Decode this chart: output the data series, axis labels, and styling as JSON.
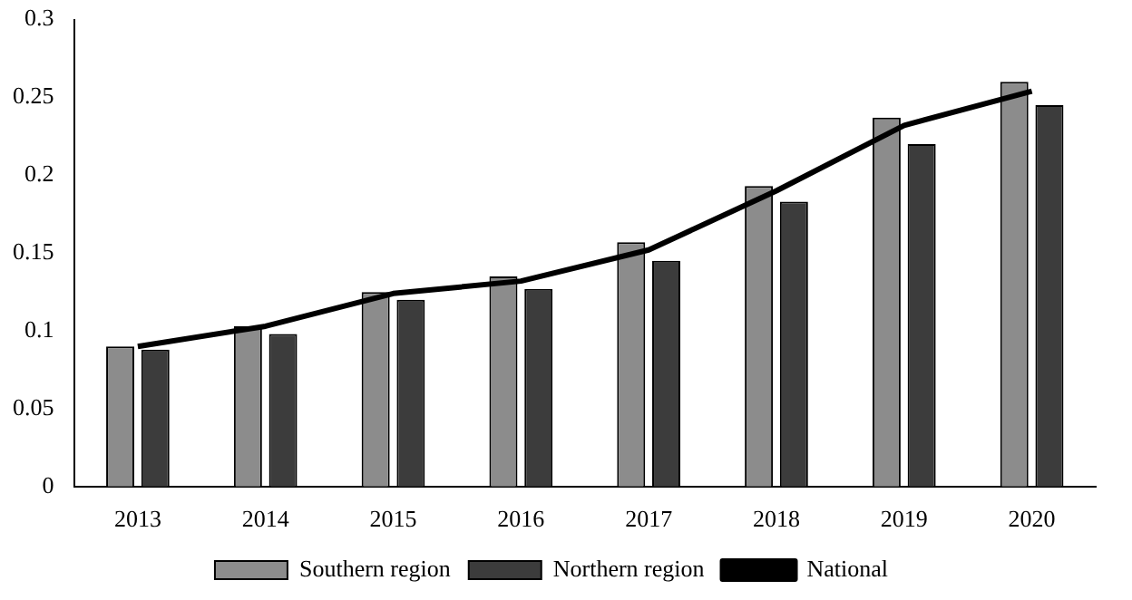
{
  "chart_data": {
    "type": "bar",
    "categories": [
      "2013",
      "2014",
      "2015",
      "2016",
      "2017",
      "2018",
      "2019",
      "2020"
    ],
    "series": [
      {
        "name": "Southern region",
        "color": "#8c8c8c",
        "values": [
          0.09,
          0.103,
          0.125,
          0.135,
          0.157,
          0.193,
          0.237,
          0.26
        ]
      },
      {
        "name": "Northern region",
        "color": "#3c3c3c",
        "values": [
          0.088,
          0.098,
          0.12,
          0.127,
          0.145,
          0.183,
          0.22,
          0.245
        ]
      },
      {
        "name": "National",
        "type": "line",
        "color": "#000000",
        "values": [
          0.09,
          0.103,
          0.124,
          0.132,
          0.152,
          0.19,
          0.232,
          0.254
        ]
      }
    ],
    "ylim": [
      0,
      0.3
    ],
    "yticks": [
      0,
      0.05,
      0.1,
      0.15,
      0.2,
      0.25,
      0.3
    ],
    "grid": false,
    "legend": "bottom",
    "marker": "none",
    "line_style": "solid"
  }
}
